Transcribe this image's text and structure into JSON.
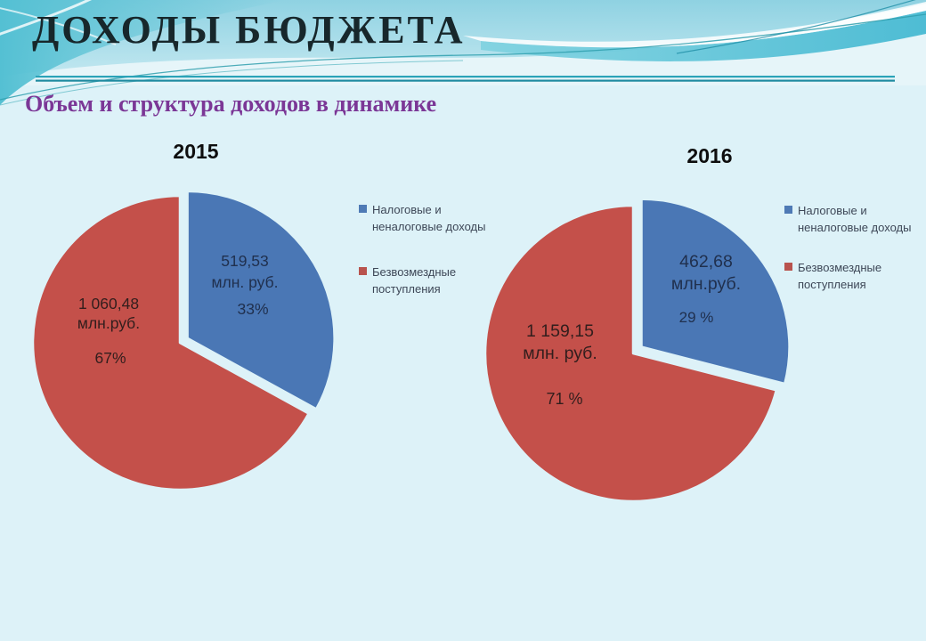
{
  "slide": {
    "title": "ДОХОДЫ БЮДЖЕТА",
    "subtitle": "Объем и структура доходов в динамике"
  },
  "theme": {
    "background": "#ddf2f8",
    "header_line": "#2ba3b8",
    "title_color": "#17272b",
    "subtitle_color": "#7b3796",
    "blue_slice": "#4a77b5",
    "red_slice": "#c4504a"
  },
  "chart_data": [
    {
      "type": "pie",
      "title": "2015",
      "units": "млн. руб.",
      "legend_position": "right",
      "legend_items": [
        {
          "label": "Налоговые и неналоговые доходы",
          "color": "#4e7ab5"
        },
        {
          "label": "Безвозмездные поступления",
          "color": "#b8534e"
        }
      ],
      "slices": [
        {
          "name": "Налоговые и неналоговые доходы",
          "value": 519.53,
          "pct": 33,
          "color": "#4a77b5",
          "exploded": true,
          "value_label": "519,53",
          "unit_label": "млн. руб.",
          "pct_label": "33%"
        },
        {
          "name": "Безвозмездные поступления",
          "value": 1060.48,
          "pct": 67,
          "color": "#c4504a",
          "exploded": false,
          "value_label": "1 060,48",
          "unit_label": "млн.руб.",
          "pct_label": "67%"
        }
      ]
    },
    {
      "type": "pie",
      "title": "2016",
      "units": "млн. руб.",
      "legend_position": "right",
      "legend_items": [
        {
          "label": "Налоговые и неналоговые доходы",
          "color": "#4e7ab5"
        },
        {
          "label": "Безвозмездные поступления",
          "color": "#b8534e"
        }
      ],
      "slices": [
        {
          "name": "Налоговые и неналоговые доходы",
          "value": 462.68,
          "pct": 29,
          "color": "#4a77b5",
          "exploded": true,
          "value_label": "462,68",
          "unit_label": "млн.руб.",
          "pct_label": "29 %"
        },
        {
          "name": "Безвозмездные поступления",
          "value": 1159.15,
          "pct": 71,
          "color": "#c4504a",
          "exploded": false,
          "value_label": "1 159,15",
          "unit_label": "млн. руб.",
          "pct_label": "71 %"
        }
      ]
    }
  ]
}
